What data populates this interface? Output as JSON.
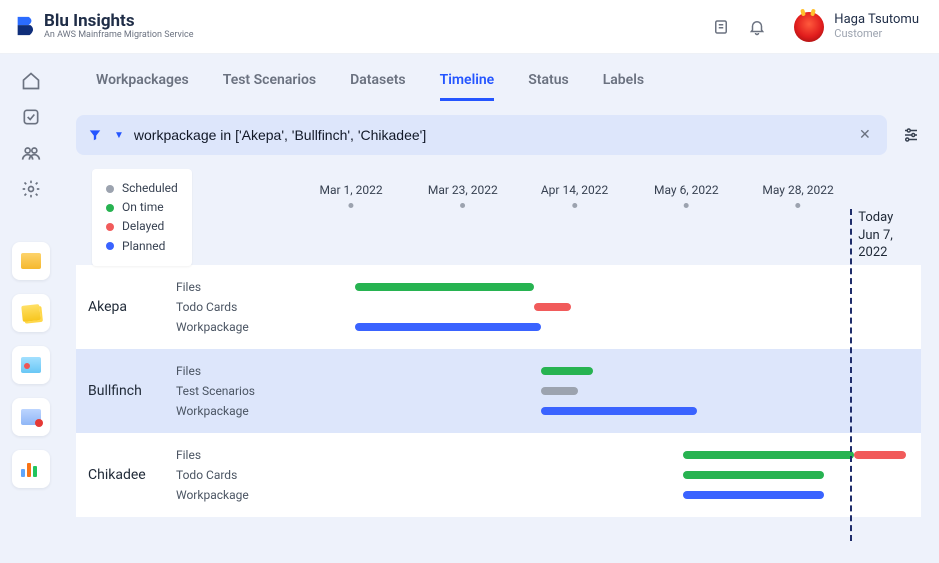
{
  "brand": {
    "title": "Blu Insights",
    "subtitle": "An AWS Mainframe Migration Service",
    "logo_color_primary": "#2b6cff",
    "logo_color_accent": "#0f2e7a"
  },
  "header": {
    "user_name": "Haga Tsutomu",
    "user_role": "Customer"
  },
  "tabs": [
    {
      "id": "workpackages",
      "label": "Workpackages",
      "active": false
    },
    {
      "id": "test-scenarios",
      "label": "Test Scenarios",
      "active": false
    },
    {
      "id": "datasets",
      "label": "Datasets",
      "active": false
    },
    {
      "id": "timeline",
      "label": "Timeline",
      "active": true
    },
    {
      "id": "status",
      "label": "Status",
      "active": false
    },
    {
      "id": "labels",
      "label": "Labels",
      "active": false
    }
  ],
  "filter": {
    "query": "workpackage in ['Akepa', 'Bullfinch', 'Chikadee']"
  },
  "legend": [
    {
      "label": "Scheduled",
      "color": "#9ca3af"
    },
    {
      "label": "On time",
      "color": "#27b351"
    },
    {
      "label": "Delayed",
      "color": "#f15b5b"
    },
    {
      "label": "Planned",
      "color": "#3a63ff"
    }
  ],
  "colors": {
    "scheduled": "#9ca3af",
    "ontime": "#27b351",
    "delayed": "#f15b5b",
    "planned": "#3a63ff",
    "row_alt_bg": "#dde6fb",
    "row_bg": "#ffffff"
  },
  "timeline": {
    "axis_start_pct": 14,
    "axis_ticks": [
      {
        "label": "Mar 1, 2022",
        "pct": 23.5
      },
      {
        "label": "Mar 23, 2022",
        "pct": 38.5
      },
      {
        "label": "Apr 14, 2022",
        "pct": 53.5
      },
      {
        "label": "May 6, 2022",
        "pct": 68.5
      },
      {
        "label": "May 28, 2022",
        "pct": 83.5
      }
    ],
    "today": {
      "label_line1": "Today",
      "label_line2": "Jun 7, 2022",
      "pct": 90.5
    },
    "rows": [
      {
        "name": "Akepa",
        "alt": false,
        "lanes": [
          {
            "label": "Files",
            "bars": [
              {
                "start_pct": 24,
                "end_pct": 48,
                "status": "ontime"
              }
            ]
          },
          {
            "label": "Todo Cards",
            "bars": [
              {
                "start_pct": 48,
                "end_pct": 53,
                "status": "delayed"
              }
            ]
          },
          {
            "label": "Workpackage",
            "bars": [
              {
                "start_pct": 24,
                "end_pct": 49,
                "status": "planned"
              }
            ]
          }
        ]
      },
      {
        "name": "Bullfinch",
        "alt": true,
        "lanes": [
          {
            "label": "Files",
            "bars": [
              {
                "start_pct": 49,
                "end_pct": 56,
                "status": "ontime"
              }
            ]
          },
          {
            "label": "Test Scenarios",
            "bars": [
              {
                "start_pct": 49,
                "end_pct": 54,
                "status": "scheduled"
              }
            ]
          },
          {
            "label": "Workpackage",
            "bars": [
              {
                "start_pct": 49,
                "end_pct": 70,
                "status": "planned"
              }
            ]
          }
        ]
      },
      {
        "name": "Chikadee",
        "alt": false,
        "lanes": [
          {
            "label": "Files",
            "bars": [
              {
                "start_pct": 68,
                "end_pct": 91,
                "status": "ontime"
              },
              {
                "start_pct": 91,
                "end_pct": 98,
                "status": "delayed"
              }
            ]
          },
          {
            "label": "Todo Cards",
            "bars": [
              {
                "start_pct": 68,
                "end_pct": 87,
                "status": "ontime"
              }
            ]
          },
          {
            "label": "Workpackage",
            "bars": [
              {
                "start_pct": 68,
                "end_pct": 87,
                "status": "planned"
              }
            ]
          }
        ]
      }
    ]
  }
}
